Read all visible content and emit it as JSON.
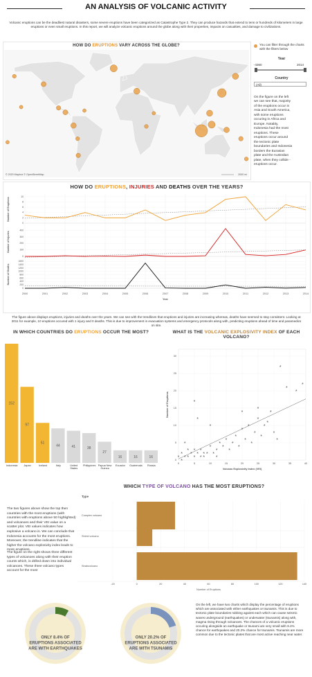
{
  "title": "AN ANALYSIS OF VOLCANIC ACTIVITY",
  "intro": "Volcanic eruptions can be the deadliest natural disasters, some severe eruptions have been categorized as Catastrophe Type 2. They can produce hazards that extend to tens or hundreds of kilometers in large eruptions or even small eruptions. In this report, we will analyze volcanic eruptions around the globe along with their properties, impacts on casualties, and damage to civilizations.",
  "filters": {
    "note": "You can filter through the charts with the filters below",
    "year_label": "Year",
    "year_range": [
      -4360,
      2014
    ],
    "country_label": "Country",
    "country_value": "(All)"
  },
  "map_text": "On the figure on the left we can see that, majority of the eruptions occur in Asia and South America, with some eruptions occuring in Africa and Europe. Notably, Indonesia had the most eruptions. These eruptions occur around the tectonic plate boundaries and Indonesia borders the Eurasian plate and the Australian plate, when they collide - eruptions occur.",
  "line_text": "The figure above displays eruptions, injuries and deaths over the years. We can see with the trendlines that eruptions and injuries are increasing whereas, deaths have seemed to stay consistent. Looking at 2011 for example, 10 eruptions occured with 1 injury and 0 deaths. This is due to improvement in evacuation systems and emergency protocols along with, predicting eruptions ahead of time and paramedics on site.",
  "bar_text": [
    "The two figures above show the top then countries with the most eruptions (with countries with eruptions above 50 highlighted) and volcanoes and their VEI value on a scatter plot. VEI values indicates how explosive a volcano is. We can conclude that Indonesia accounts for the most eruptions. Moreover, the trendline indicates that the higher the volcano explosivity index leads to more eruptions.",
    "The figure on the right shows three different types of volcanoes along with their eruption counts which, is drilled down into individual volcanoes. These three volcano types account for the most"
  ],
  "donut_text": "On the left, we have two charts which display the percentage of eruptions which are associated with either earthquakes or tsunamis. This is due to tectonic plate boundaries rubbing against each which can cause seismic waves underground (earthquakes) or underwater (tsunamis) along with, magma rising through volcanoes. The chances of a volcanic eruptions occuring alongside an earthquake or tsunami are very small with 8.4% chance for earthquakes and 20.2% chance for tsunamis. Tsunamis are more common due to the tectonic plates that are most active reaching near water.",
  "chart_data": [
    {
      "type": "map",
      "title_parts": [
        {
          "text": "HOW DO ",
          "color": "#333333"
        },
        {
          "text": "ERUPTIONS",
          "color": "#e8902a"
        },
        {
          "text": " VARY ACROSS THE GLOBE?",
          "color": "#333333"
        }
      ],
      "lon": [
        -165,
        160,
        140,
        110,
        125,
        122,
        147,
        168,
        176,
        -19,
        15,
        40,
        29,
        -100,
        -90,
        -78,
        -71,
        -72,
        -122,
        -155,
        -62,
        -175
      ],
      "lat": [
        55,
        55,
        36,
        -7,
        0,
        13,
        -6,
        -16,
        -39,
        64,
        38,
        13,
        -2,
        19,
        14,
        -1,
        -35,
        -16,
        46,
        20,
        16,
        -20
      ],
      "values": [
        6,
        15,
        30,
        60,
        20,
        15,
        12,
        8,
        6,
        20,
        15,
        5,
        6,
        8,
        10,
        12,
        8,
        6,
        10,
        5,
        5,
        5
      ],
      "color": "#e8a14a",
      "credit": "© 2020 Mapbox © OpenStreetMap",
      "scale_label": "2000 mi"
    },
    {
      "type": "multiline",
      "title_parts": [
        {
          "text": "HOW DO ",
          "color": "#333333"
        },
        {
          "text": "ERUPTIONS",
          "color": "#f0a030"
        },
        {
          "text": ", ",
          "color": "#333333"
        },
        {
          "text": "INJURIES",
          "color": "#d81b1b"
        },
        {
          "text": " AND ",
          "color": "#333333"
        },
        {
          "text": "DEATHS",
          "color": "#111111"
        },
        {
          "text": " OVER THE YEARS?",
          "color": "#333333"
        }
      ],
      "x": [
        2000,
        2001,
        2002,
        2003,
        2004,
        2005,
        2006,
        2007,
        2008,
        2009,
        2010,
        2011,
        2012,
        2013,
        2014
      ],
      "xlabel": "Year",
      "panels": [
        {
          "ylabel": "Number of Eruptions",
          "color": "#f0a030",
          "values": [
            3,
            2,
            2,
            4,
            2,
            2,
            5,
            1,
            3,
            4,
            9,
            10,
            1,
            7,
            5
          ],
          "ylim": [
            0,
            10.5
          ],
          "yticks": [
            0,
            2,
            4,
            6,
            8,
            10
          ]
        },
        {
          "ylabel": "Number of Injuries",
          "color": "#d81b1b",
          "values": [
            0,
            0,
            10,
            0,
            5,
            0,
            20,
            0,
            0,
            10,
            430,
            30,
            10,
            30,
            100
          ],
          "ylim": [
            0,
            450
          ],
          "yticks": [
            0,
            100,
            200,
            300,
            400
          ]
        },
        {
          "ylabel": "Number of Deaths",
          "color": "#111111",
          "values": [
            0,
            0,
            50,
            0,
            0,
            0,
            1500,
            20,
            0,
            0,
            200,
            0,
            60,
            10,
            50
          ],
          "ylim": [
            0,
            1650
          ],
          "yticks": [
            0,
            200,
            400,
            600,
            800,
            1000,
            1200,
            1400,
            1600
          ]
        }
      ]
    },
    {
      "type": "bar",
      "title_parts": [
        {
          "text": "IN WHICH COUNTRIES DO ",
          "color": "#333333"
        },
        {
          "text": "ERUPTIONS",
          "color": "#f0a030"
        },
        {
          "text": " OCCUR THE MOST?",
          "color": "#333333"
        }
      ],
      "categories": [
        "Indonesia",
        "Japan",
        "Iceland",
        "Italy",
        "United States",
        "Philippines",
        "Papua New Guinea",
        "Ecuador",
        "Guatemala",
        "Russia"
      ],
      "values": [
        152,
        97,
        51,
        44,
        41,
        38,
        27,
        16,
        16,
        16
      ],
      "colors": [
        "#f2b632",
        "#f2b632",
        "#f2b632",
        "#d9d9d9",
        "#d9d9d9",
        "#d9d9d9",
        "#d9d9d9",
        "#d9d9d9",
        "#d9d9d9",
        "#d9d9d9"
      ]
    },
    {
      "type": "scatter",
      "title_parts": [
        {
          "text": "WHAT IS THE ",
          "color": "#333333"
        },
        {
          "text": "VOLCANIC EXPLOSIVITY INDEX",
          "color": "#c0853a"
        },
        {
          "text": " OF EACH VOLCANO?",
          "color": "#333333"
        }
      ],
      "x": [
        0,
        1,
        2,
        3,
        4,
        5,
        6,
        7,
        8,
        9,
        10,
        11,
        12,
        13,
        14,
        15,
        16,
        17,
        18,
        19,
        20,
        21,
        22,
        23,
        24,
        25,
        26,
        27,
        28,
        29,
        30,
        31,
        32,
        34,
        37,
        39,
        2,
        5,
        6,
        10,
        20,
        25,
        3,
        1,
        5,
        7,
        8,
        12
      ],
      "y": [
        1,
        2,
        1,
        3,
        2,
        1,
        2,
        3,
        1,
        2,
        4,
        2,
        3,
        5,
        4,
        6,
        3,
        5,
        7,
        4,
        9,
        6,
        10,
        5,
        8,
        12,
        7,
        10,
        11,
        14,
        8,
        6,
        27,
        21,
        20,
        22,
        5,
        17,
        12,
        10,
        14,
        15,
        1,
        0,
        3,
        1,
        2,
        1
      ],
      "xlim": [
        0,
        40
      ],
      "ylim": [
        0,
        32
      ],
      "xticks": [
        0,
        5,
        10,
        15,
        20,
        25,
        30,
        35,
        40
      ],
      "yticks": [
        0,
        5,
        10,
        15,
        20,
        25,
        30
      ],
      "xlabel": "Volcano Explosivity Index (VEI)",
      "ylabel": "Number of Eruptions",
      "color": "#9b6b3a"
    },
    {
      "type": "hbar",
      "title_parts": [
        {
          "text": "WHICH ",
          "color": "#333333"
        },
        {
          "text": "TYPE OF VOLCANO",
          "color": "#7a4fa0"
        },
        {
          "text": " HAS THE MOST ERUPTIONS?",
          "color": "#333333"
        }
      ],
      "header": "Type",
      "categories": [
        "Complex volcano",
        "Shield volcano",
        "Stratovolcano"
      ],
      "values": [
        32,
        13,
        134
      ],
      "xlim": [
        -20,
        140
      ],
      "xticks": [
        -20,
        0,
        20,
        40,
        60,
        80,
        100,
        120,
        140
      ],
      "xlabel": "Number of Eruptions",
      "color": "#c08a3e"
    },
    {
      "type": "donut",
      "title_lines": [
        "ONLY 8.4% OF",
        "ERUPTIONS ASSOCIATED",
        "ARE WITH EARTHQUAKES"
      ],
      "values": [
        8.4
      ],
      "color": "#4a7a2e"
    },
    {
      "type": "donut",
      "title_lines": [
        "ONLY 20.2% OF",
        "ERUPTIONS ASSOCIATED",
        "ARE WITH TSUNAMIS"
      ],
      "values": [
        20.2
      ],
      "color": "#7a93bd"
    }
  ]
}
